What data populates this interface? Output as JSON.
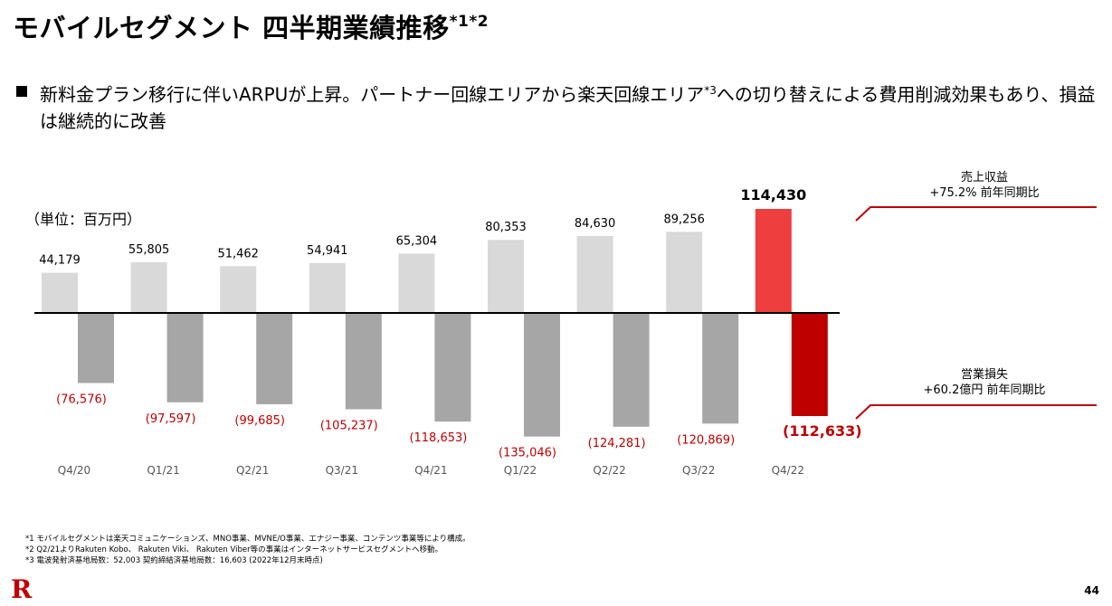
{
  "title": {
    "main": "モバイルセグメント 四半期業績推移",
    "sup": "*1*2"
  },
  "bullet": {
    "text1": "新料金プラン移行に伴いARPUが上昇。パートナー回線エリアから楽天回線エリア",
    "sup": "*3",
    "text2": "への切り替えによる費用削減効果もあり、損益は継続的に改善"
  },
  "unit_label": "（単位：百万円）",
  "side_labels": {
    "revenue_title": "売上収益",
    "revenue_note": "+75.2% 前年同期比",
    "loss_title": "営業損失",
    "loss_note": "+60.2億円 前年同期比"
  },
  "footnotes": [
    "*1 モバイルセグメントは楽天コミュニケーションズ、MNO事業、MVNE/O事業、エナジー事業、コンテンツ事業等により構成。",
    "*2 Q2/21よりRakuten Kobo、 Rakuten Viki、 Rakuten Viber等の事業はインターネットサービスセグメントへ移動。",
    "*3 電波発射済基地局数：52,003 契約締結済基地局数：16,603 (2022年12月末時点)"
  ],
  "logo": "R",
  "page_number": "44",
  "colors": {
    "revenue_bar": "#d9d9d9",
    "revenue_bar_latest": "#ee3e3e",
    "loss_bar": "#a6a6a6",
    "loss_bar_latest": "#bf0000",
    "loss_label": "#bf0000",
    "accent_line": "#bf0000"
  },
  "chart_data": {
    "type": "bar",
    "categories": [
      "Q4/20",
      "Q1/21",
      "Q2/21",
      "Q3/21",
      "Q4/21",
      "Q1/22",
      "Q2/22",
      "Q3/22",
      "Q4/22"
    ],
    "series": [
      {
        "name": "売上収益",
        "values": [
          44179,
          55805,
          51462,
          54941,
          65304,
          80353,
          84630,
          89256,
          114430
        ],
        "labels": [
          "44,179",
          "55,805",
          "51,462",
          "54,941",
          "65,304",
          "80,353",
          "84,630",
          "89,256",
          "114,430"
        ]
      },
      {
        "name": "営業損失",
        "values": [
          -76576,
          -97597,
          -99685,
          -105237,
          -118653,
          -135046,
          -124281,
          -120869,
          -112633
        ],
        "labels": [
          "(76,576)",
          "(97,597)",
          "(99,685)",
          "(105,237)",
          "(118,653)",
          "(135,046)",
          "(124,281)",
          "(120,869)",
          "(112,633)"
        ]
      }
    ],
    "highlight_category": "Q4/22"
  }
}
